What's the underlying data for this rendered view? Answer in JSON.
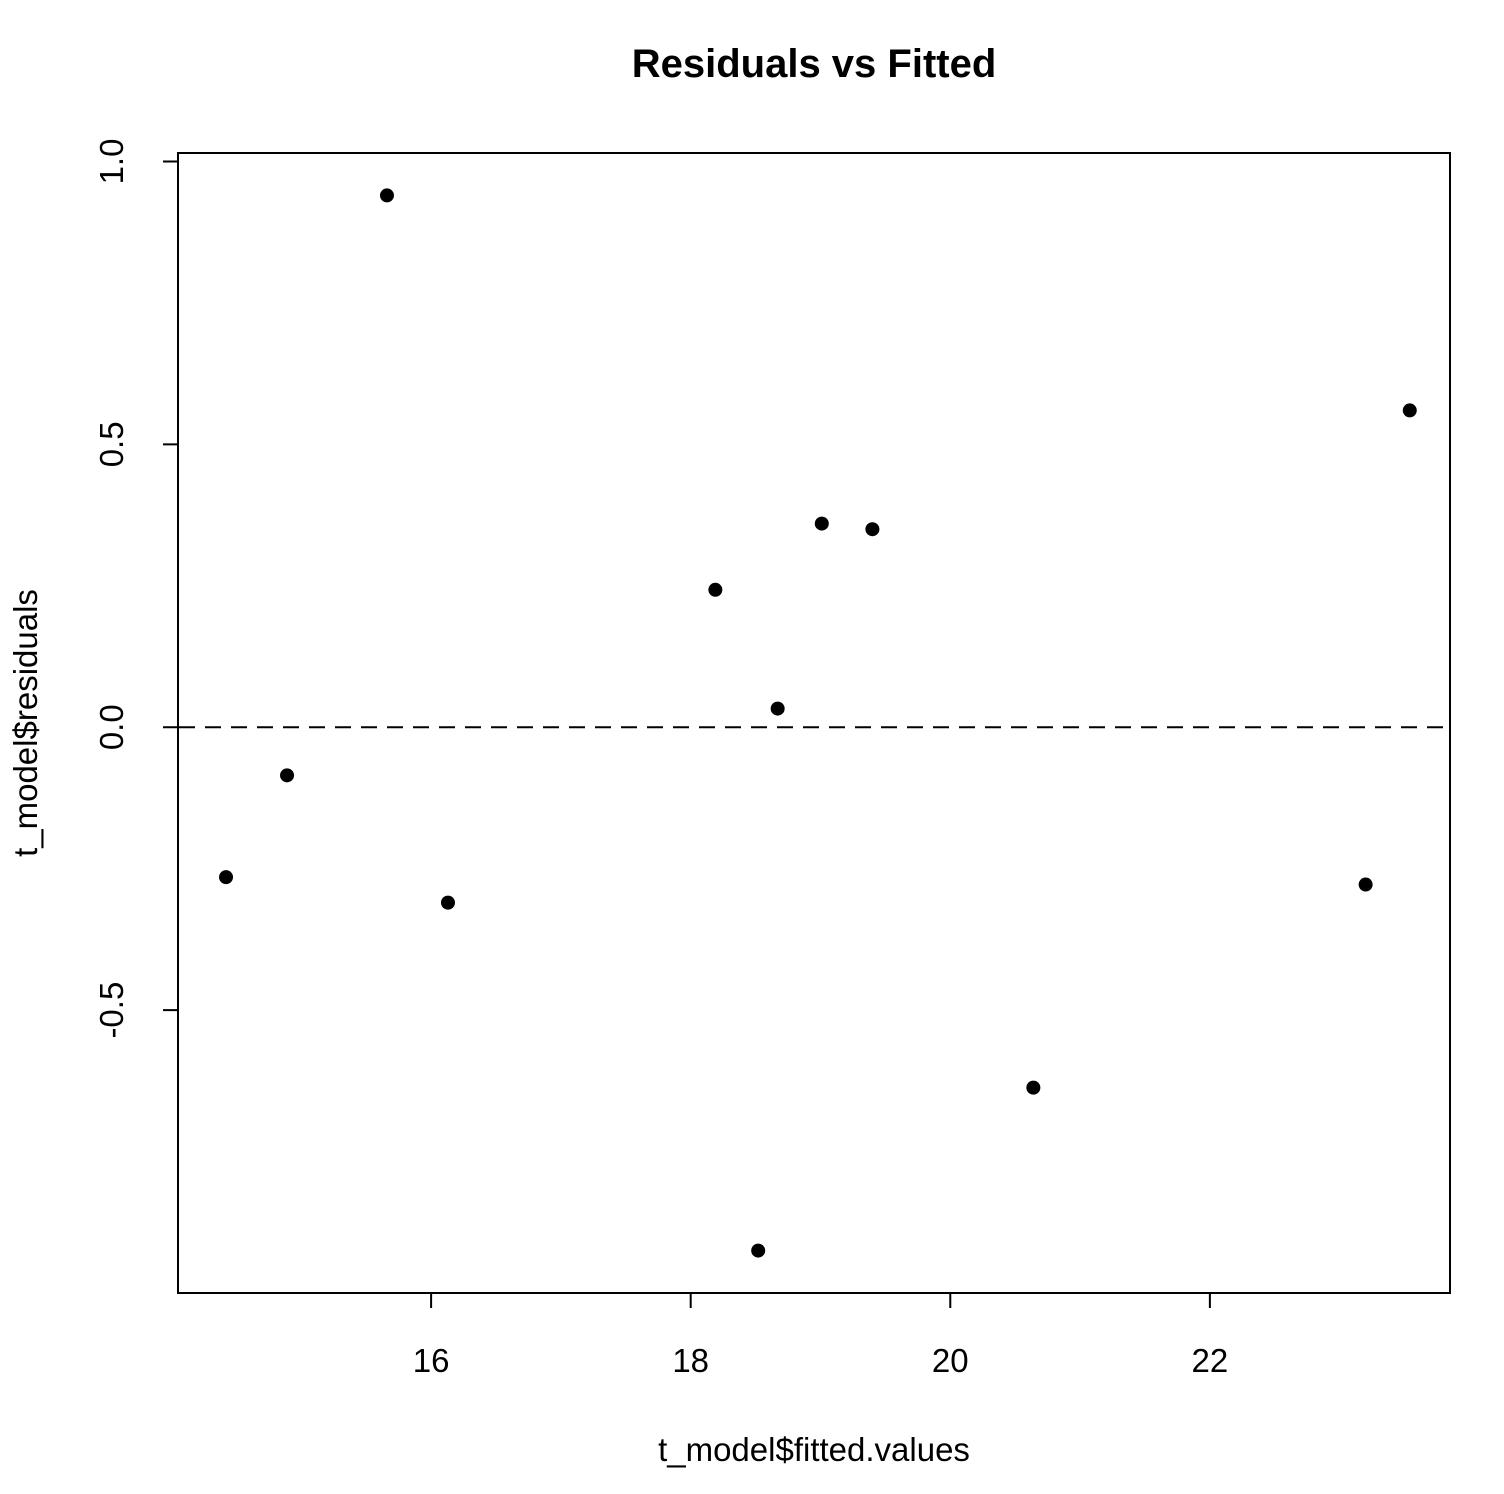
{
  "chart_data": {
    "type": "scatter",
    "title": "Residuals vs Fitted",
    "xlabel": "t_model$fitted.values",
    "ylabel": "t_model$residuals",
    "xticks": [
      16,
      18,
      20,
      22
    ],
    "yticks": [
      -0.5,
      0.0,
      0.5,
      1.0
    ],
    "ytick_labels": [
      "-0.5",
      "0.0",
      "0.5",
      "1.0"
    ],
    "xlim": [
      14.05,
      23.85
    ],
    "ylim": [
      -1.0,
      1.015
    ],
    "reference_line": {
      "y": 0,
      "style": "dashed"
    },
    "grid": false,
    "legend": "none",
    "colors": {
      "points": "#000000",
      "axes": "#000000",
      "background": "#ffffff"
    },
    "points": [
      {
        "x": 14.42,
        "y": -0.265
      },
      {
        "x": 14.89,
        "y": -0.085
      },
      {
        "x": 15.66,
        "y": 0.94
      },
      {
        "x": 16.13,
        "y": -0.31
      },
      {
        "x": 18.19,
        "y": 0.243
      },
      {
        "x": 18.52,
        "y": -0.925
      },
      {
        "x": 18.67,
        "y": 0.033
      },
      {
        "x": 19.01,
        "y": 0.36
      },
      {
        "x": 19.4,
        "y": 0.35
      },
      {
        "x": 20.64,
        "y": -0.637
      },
      {
        "x": 23.2,
        "y": -0.278
      },
      {
        "x": 23.54,
        "y": 0.56
      }
    ]
  }
}
